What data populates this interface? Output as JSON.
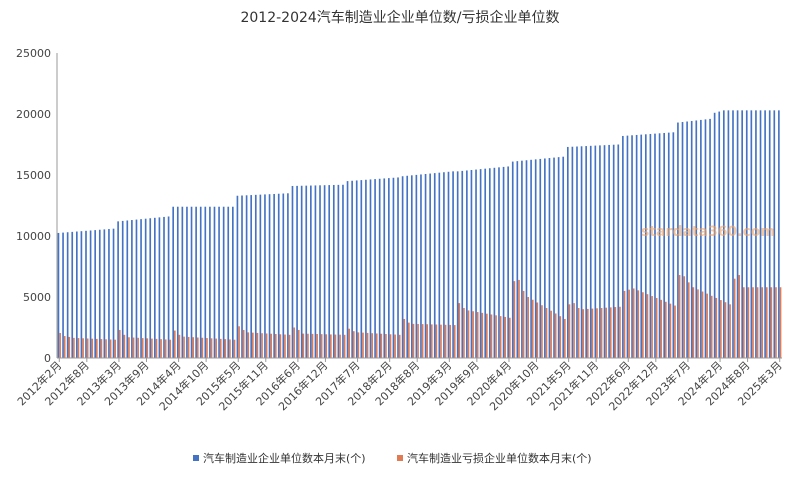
{
  "chart_data": {
    "type": "bar",
    "title": "2012-2024汽车制造业企业单位数/亏损企业单位数",
    "xlabel": "",
    "ylabel": "",
    "ylim": [
      0,
      25000
    ],
    "y_ticks": [
      "0",
      "5000",
      "10000",
      "15000",
      "20000",
      "25000"
    ],
    "x_tick_labels": [
      "2012年2月",
      "2012年8月",
      "2013年3月",
      "2013年9月",
      "2014年4月",
      "2014年10月",
      "2015年5月",
      "2015年11月",
      "2016年6月",
      "2016年12月",
      "2017年7月",
      "2018年2月",
      "2018年8月",
      "2019年3月",
      "2019年9月",
      "2020年4月",
      "2020年10月",
      "2021年5月",
      "2021年11月",
      "2022年6月",
      "2022年12月",
      "2023年7月",
      "2024年2月",
      "2024年8月",
      "2025年3月"
    ],
    "legend_position": "bottom",
    "grid": false,
    "watermark": "stardata360.com",
    "series": [
      {
        "name": "汽车制造业企业单位数本月末(个)",
        "color": "#4472c4",
        "anchors": [
          [
            0,
            10250
          ],
          [
            12,
            10600
          ],
          [
            13,
            11200
          ],
          [
            24,
            11600
          ],
          [
            25,
            12400
          ],
          [
            38,
            12400
          ],
          [
            39,
            13300
          ],
          [
            50,
            13500
          ],
          [
            51,
            14100
          ],
          [
            62,
            14200
          ],
          [
            63,
            14500
          ],
          [
            74,
            14800
          ],
          [
            75,
            14900
          ],
          [
            86,
            15300
          ],
          [
            87,
            15300
          ],
          [
            98,
            15700
          ],
          [
            99,
            16100
          ],
          [
            110,
            16500
          ],
          [
            111,
            17300
          ],
          [
            122,
            17500
          ],
          [
            123,
            18200
          ],
          [
            134,
            18500
          ],
          [
            135,
            19300
          ],
          [
            142,
            19600
          ],
          [
            143,
            20100
          ],
          [
            145,
            20300
          ]
        ]
      },
      {
        "name": "汽车制造业亏损企业单位数本月末(个)",
        "color": "#e07b54",
        "anchors": [
          [
            0,
            2050
          ],
          [
            1,
            1800
          ],
          [
            3,
            1650
          ],
          [
            12,
            1500
          ],
          [
            13,
            2300
          ],
          [
            14,
            1900
          ],
          [
            15,
            1700
          ],
          [
            24,
            1500
          ],
          [
            25,
            2250
          ],
          [
            26,
            1900
          ],
          [
            27,
            1750
          ],
          [
            38,
            1500
          ],
          [
            39,
            2600
          ],
          [
            40,
            2300
          ],
          [
            41,
            2100
          ],
          [
            50,
            1900
          ],
          [
            51,
            2500
          ],
          [
            52,
            2300
          ],
          [
            53,
            2000
          ],
          [
            62,
            1900
          ],
          [
            63,
            2400
          ],
          [
            64,
            2200
          ],
          [
            65,
            2100
          ],
          [
            74,
            1900
          ],
          [
            75,
            3200
          ],
          [
            76,
            2900
          ],
          [
            77,
            2800
          ],
          [
            86,
            2700
          ],
          [
            87,
            4500
          ],
          [
            88,
            4100
          ],
          [
            89,
            3900
          ],
          [
            98,
            3300
          ],
          [
            99,
            6300
          ],
          [
            100,
            6400
          ],
          [
            101,
            5500
          ],
          [
            102,
            5000
          ],
          [
            110,
            3200
          ],
          [
            111,
            4400
          ],
          [
            112,
            4500
          ],
          [
            113,
            4100
          ],
          [
            114,
            4000
          ],
          [
            122,
            4200
          ],
          [
            123,
            5500
          ],
          [
            124,
            5600
          ],
          [
            125,
            5700
          ],
          [
            134,
            4300
          ],
          [
            135,
            6800
          ],
          [
            136,
            6700
          ],
          [
            137,
            6200
          ],
          [
            138,
            5800
          ],
          [
            146,
            4400
          ],
          [
            147,
            6500
          ],
          [
            148,
            6800
          ],
          [
            149,
            5800
          ]
        ]
      }
    ]
  }
}
